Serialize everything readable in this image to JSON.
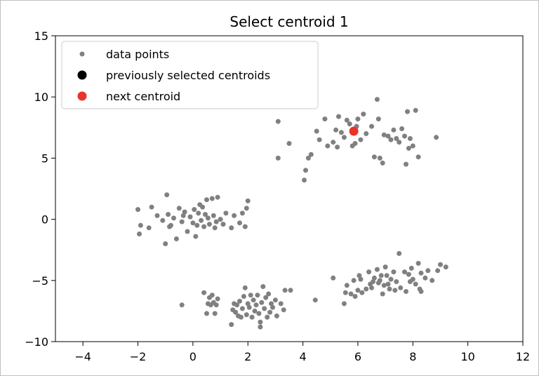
{
  "chart_data": {
    "type": "scatter",
    "title": "Select centroid 1",
    "xlabel": "",
    "ylabel": "",
    "xlim": [
      -5,
      12
    ],
    "ylim": [
      -10,
      15
    ],
    "xticks": [
      -4,
      -2,
      0,
      2,
      4,
      6,
      8,
      10,
      12
    ],
    "yticks": [
      -10,
      -5,
      0,
      5,
      10,
      15
    ],
    "xtick_labels": [
      "−4",
      "−2",
      "0",
      "2",
      "4",
      "6",
      "8",
      "10",
      "12"
    ],
    "ytick_labels": [
      "−10",
      "−5",
      "0",
      "5",
      "10",
      "15"
    ],
    "grid": false,
    "legend_position": "upper-left",
    "series": [
      {
        "name": "data points",
        "color": "#808080",
        "points": [
          [
            3.1,
            8.0
          ],
          [
            3.1,
            5.0
          ],
          [
            3.5,
            6.2
          ],
          [
            4.1,
            4.0
          ],
          [
            4.05,
            3.2
          ],
          [
            4.2,
            5.0
          ],
          [
            4.5,
            7.2
          ],
          [
            4.8,
            8.2
          ],
          [
            4.6,
            6.5
          ],
          [
            4.9,
            6.0
          ],
          [
            5.1,
            6.3
          ],
          [
            5.2,
            7.3
          ],
          [
            5.3,
            8.4
          ],
          [
            5.4,
            7.1
          ],
          [
            5.5,
            6.7
          ],
          [
            5.6,
            8.1
          ],
          [
            5.7,
            7.8
          ],
          [
            5.9,
            6.2
          ],
          [
            6.0,
            8.2
          ],
          [
            6.1,
            6.5
          ],
          [
            6.2,
            8.6
          ],
          [
            6.3,
            7.0
          ],
          [
            5.8,
            6.0
          ],
          [
            5.95,
            7.6
          ],
          [
            6.5,
            7.6
          ],
          [
            6.7,
            9.8
          ],
          [
            6.8,
            5.0
          ],
          [
            6.9,
            4.6
          ],
          [
            6.95,
            6.9
          ],
          [
            7.1,
            6.8
          ],
          [
            7.2,
            6.5
          ],
          [
            7.3,
            7.3
          ],
          [
            7.4,
            6.6
          ],
          [
            7.5,
            6.3
          ],
          [
            7.6,
            7.4
          ],
          [
            7.7,
            6.8
          ],
          [
            7.75,
            4.5
          ],
          [
            7.8,
            8.8
          ],
          [
            7.85,
            5.8
          ],
          [
            8.0,
            6.0
          ],
          [
            8.1,
            8.9
          ],
          [
            8.2,
            5.1
          ],
          [
            8.85,
            6.7
          ],
          [
            6.75,
            8.2
          ],
          [
            6.6,
            5.1
          ],
          [
            7.9,
            6.6
          ],
          [
            5.25,
            5.9
          ],
          [
            4.3,
            5.3
          ],
          [
            -2.0,
            0.8
          ],
          [
            -1.95,
            -1.2
          ],
          [
            -1.9,
            -0.5
          ],
          [
            -1.6,
            -0.7
          ],
          [
            -1.5,
            1.0
          ],
          [
            -1.3,
            0.3
          ],
          [
            -1.1,
            -0.1
          ],
          [
            -1.0,
            -2.0
          ],
          [
            -0.95,
            2.0
          ],
          [
            -0.9,
            0.4
          ],
          [
            -0.8,
            -0.5
          ],
          [
            -0.7,
            0.1
          ],
          [
            -0.6,
            -1.6
          ],
          [
            -0.5,
            0.9
          ],
          [
            -0.4,
            -0.2
          ],
          [
            -0.3,
            0.6
          ],
          [
            -0.2,
            -1.0
          ],
          [
            -0.1,
            0.2
          ],
          [
            0.0,
            -0.3
          ],
          [
            0.05,
            0.8
          ],
          [
            0.1,
            -1.4
          ],
          [
            0.2,
            0.5
          ],
          [
            0.3,
            -0.1
          ],
          [
            0.35,
            1.0
          ],
          [
            0.4,
            -0.6
          ],
          [
            0.5,
            1.6
          ],
          [
            0.55,
            0.1
          ],
          [
            0.6,
            -0.4
          ],
          [
            0.7,
            1.7
          ],
          [
            0.75,
            0.3
          ],
          [
            0.8,
            -0.7
          ],
          [
            0.9,
            1.8
          ],
          [
            1.0,
            0.0
          ],
          [
            1.1,
            -0.4
          ],
          [
            1.2,
            0.5
          ],
          [
            1.4,
            -0.7
          ],
          [
            1.5,
            0.3
          ],
          [
            1.7,
            -0.3
          ],
          [
            1.8,
            0.5
          ],
          [
            1.9,
            -0.6
          ],
          [
            1.95,
            0.9
          ],
          [
            2.0,
            1.5
          ],
          [
            -0.85,
            -0.6
          ],
          [
            0.15,
            -0.5
          ],
          [
            0.45,
            0.4
          ],
          [
            0.85,
            -0.2
          ],
          [
            -0.35,
            0.3
          ],
          [
            0.25,
            1.2
          ],
          [
            -0.4,
            -7.0
          ],
          [
            0.4,
            -6.0
          ],
          [
            0.5,
            -7.7
          ],
          [
            0.6,
            -6.4
          ],
          [
            0.65,
            -7.0
          ],
          [
            0.7,
            -6.2
          ],
          [
            0.75,
            -6.8
          ],
          [
            0.8,
            -7.7
          ],
          [
            0.85,
            -7.0
          ],
          [
            0.9,
            -6.5
          ],
          [
            1.4,
            -8.6
          ],
          [
            1.45,
            -7.4
          ],
          [
            1.5,
            -6.9
          ],
          [
            1.55,
            -7.6
          ],
          [
            1.6,
            -7.0
          ],
          [
            1.7,
            -6.7
          ],
          [
            1.75,
            -8.0
          ],
          [
            1.8,
            -7.3
          ],
          [
            1.85,
            -6.3
          ],
          [
            1.9,
            -5.6
          ],
          [
            1.95,
            -7.8
          ],
          [
            2.0,
            -6.9
          ],
          [
            2.05,
            -7.2
          ],
          [
            2.1,
            -6.2
          ],
          [
            2.15,
            -8.0
          ],
          [
            2.2,
            -6.6
          ],
          [
            2.25,
            -7.5
          ],
          [
            2.3,
            -7.0
          ],
          [
            2.35,
            -6.2
          ],
          [
            2.4,
            -7.7
          ],
          [
            2.45,
            -8.4
          ],
          [
            2.5,
            -6.8
          ],
          [
            2.55,
            -5.5
          ],
          [
            2.6,
            -7.3
          ],
          [
            2.65,
            -6.4
          ],
          [
            2.7,
            -8.0
          ],
          [
            2.75,
            -6.1
          ],
          [
            2.8,
            -7.6
          ],
          [
            2.85,
            -6.9
          ],
          [
            2.9,
            -7.2
          ],
          [
            3.0,
            -6.6
          ],
          [
            3.05,
            -7.9
          ],
          [
            3.2,
            -6.9
          ],
          [
            3.3,
            -7.4
          ],
          [
            3.35,
            -5.8
          ],
          [
            3.55,
            -5.8
          ],
          [
            4.45,
            -6.6
          ],
          [
            2.45,
            -8.8
          ],
          [
            1.65,
            -7.9
          ],
          [
            0.55,
            -6.9
          ],
          [
            5.1,
            -4.8
          ],
          [
            5.5,
            -6.9
          ],
          [
            5.55,
            -6.0
          ],
          [
            5.6,
            -5.4
          ],
          [
            5.75,
            -6.1
          ],
          [
            5.85,
            -5.0
          ],
          [
            5.9,
            -6.3
          ],
          [
            6.0,
            -5.8
          ],
          [
            6.1,
            -4.9
          ],
          [
            6.15,
            -6.0
          ],
          [
            6.3,
            -5.7
          ],
          [
            6.4,
            -4.3
          ],
          [
            6.45,
            -5.3
          ],
          [
            6.5,
            -5.6
          ],
          [
            6.6,
            -4.8
          ],
          [
            6.7,
            -4.1
          ],
          [
            6.75,
            -5.2
          ],
          [
            6.8,
            -5.0
          ],
          [
            6.85,
            -4.6
          ],
          [
            6.9,
            -6.1
          ],
          [
            6.95,
            -5.4
          ],
          [
            7.0,
            -3.9
          ],
          [
            7.05,
            -4.6
          ],
          [
            7.1,
            -5.3
          ],
          [
            7.15,
            -5.7
          ],
          [
            7.2,
            -4.9
          ],
          [
            7.3,
            -4.3
          ],
          [
            7.4,
            -5.1
          ],
          [
            7.5,
            -2.8
          ],
          [
            7.55,
            -5.6
          ],
          [
            7.7,
            -4.3
          ],
          [
            7.75,
            -5.9
          ],
          [
            7.85,
            -4.5
          ],
          [
            7.9,
            -5.1
          ],
          [
            7.95,
            -4.0
          ],
          [
            8.0,
            -4.9
          ],
          [
            8.1,
            -5.3
          ],
          [
            8.2,
            -3.6
          ],
          [
            8.25,
            -5.7
          ],
          [
            8.3,
            -4.4
          ],
          [
            8.45,
            -4.8
          ],
          [
            8.55,
            -4.2
          ],
          [
            8.7,
            -5.0
          ],
          [
            8.9,
            -4.2
          ],
          [
            9.0,
            -3.7
          ],
          [
            9.2,
            -3.9
          ],
          [
            8.3,
            -5.9
          ],
          [
            7.35,
            -5.8
          ],
          [
            6.55,
            -5.1
          ],
          [
            6.05,
            -4.6
          ]
        ]
      },
      {
        "name": "previously selected centroids",
        "color": "#000000",
        "points": []
      },
      {
        "name": "next centroid",
        "color": "#e8342a",
        "points": [
          [
            5.85,
            7.2
          ]
        ]
      }
    ]
  }
}
